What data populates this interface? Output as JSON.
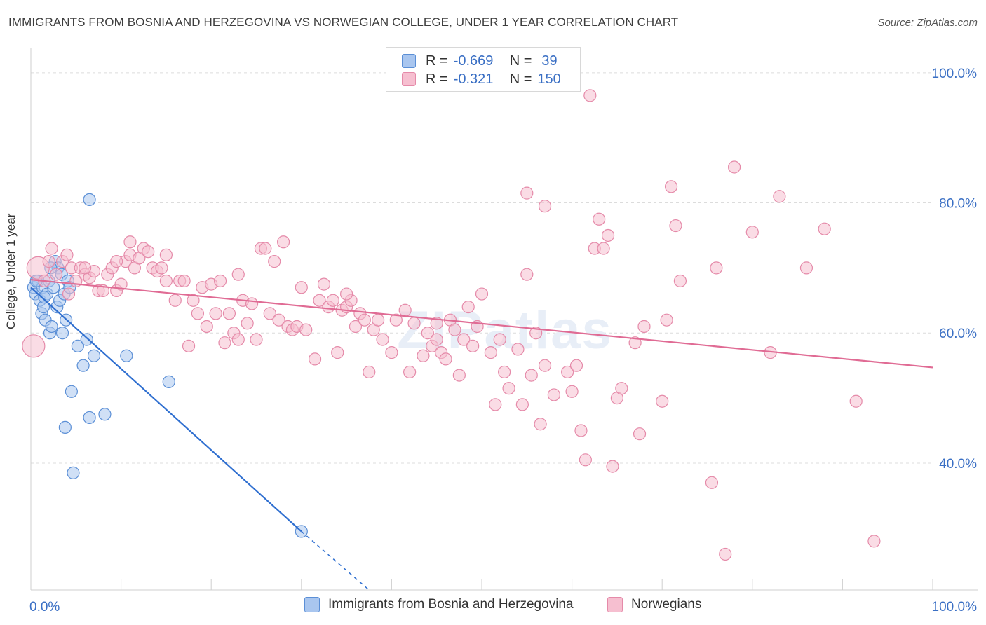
{
  "header": {
    "title": "IMMIGRANTS FROM BOSNIA AND HERZEGOVINA VS NORWEGIAN COLLEGE, UNDER 1 YEAR CORRELATION CHART",
    "source": "Source: ZipAtlas.com"
  },
  "watermark": "ZIPatlas",
  "legend": {
    "r_label": "R =",
    "n_label": "N =",
    "rows": [
      {
        "r": "-0.669",
        "n": "39",
        "color": "#a9c6ef",
        "stroke": "#5b8fd6"
      },
      {
        "r": "-0.321",
        "n": "150",
        "color": "#f6bfd0",
        "stroke": "#e58aa9"
      }
    ]
  },
  "chart_data": {
    "type": "scatter",
    "xlabel": "",
    "ylabel": "College, Under 1 year",
    "x_tick_labels": [
      "0.0%",
      "100.0%"
    ],
    "y_tick_labels": [
      "100.0%",
      "80.0%",
      "60.0%",
      "40.0%"
    ],
    "xlim": [
      0,
      100
    ],
    "ylim": [
      20.5,
      103
    ],
    "grid": true,
    "series": [
      {
        "name": "Immigrants from Bosnia and Herzegovina",
        "color": "#a9c6ef",
        "stroke": "#5b8fd6",
        "line_color": "#2f6fd0",
        "trend": {
          "x0": 0,
          "y0": 67.0,
          "x1": 30,
          "y1": 29.5,
          "dash_to_x": 37.5,
          "dash_to_y": 20.5
        },
        "points": [
          [
            0.3,
            67
          ],
          [
            0.5,
            66
          ],
          [
            0.8,
            68
          ],
          [
            1.0,
            65
          ],
          [
            1.2,
            63
          ],
          [
            1.3,
            67
          ],
          [
            1.4,
            64
          ],
          [
            1.6,
            62
          ],
          [
            1.8,
            66
          ],
          [
            2.0,
            68
          ],
          [
            2.1,
            60
          ],
          [
            2.3,
            61
          ],
          [
            2.5,
            67
          ],
          [
            2.7,
            71
          ],
          [
            2.9,
            64
          ],
          [
            3.0,
            70
          ],
          [
            3.2,
            65
          ],
          [
            3.4,
            69
          ],
          [
            3.5,
            60
          ],
          [
            3.7,
            66
          ],
          [
            3.8,
            45.5
          ],
          [
            3.9,
            62
          ],
          [
            4.1,
            68
          ],
          [
            4.3,
            67
          ],
          [
            4.5,
            51
          ],
          [
            4.7,
            38.5
          ],
          [
            5.2,
            58
          ],
          [
            5.8,
            55
          ],
          [
            6.2,
            59
          ],
          [
            6.5,
            47
          ],
          [
            7.0,
            56.5
          ],
          [
            8.2,
            47.5
          ],
          [
            10.6,
            56.5
          ],
          [
            15.3,
            52.5
          ],
          [
            30.0,
            29.5
          ],
          [
            6.5,
            80.5
          ],
          [
            2.2,
            70
          ],
          [
            0.6,
            68
          ],
          [
            1.5,
            65.5
          ]
        ]
      },
      {
        "name": "Norwegians",
        "color": "#f6bfd0",
        "stroke": "#e58aa9",
        "line_color": "#e06b94",
        "trend": {
          "x0": 0,
          "y0": 68.2,
          "x1": 100,
          "y1": 54.7
        },
        "points": [
          [
            0.3,
            58
          ],
          [
            0.8,
            70
          ],
          [
            1.5,
            68
          ],
          [
            2.0,
            71
          ],
          [
            2.3,
            73
          ],
          [
            2.8,
            69
          ],
          [
            3.5,
            71
          ],
          [
            4.0,
            72
          ],
          [
            4.5,
            70
          ],
          [
            5.0,
            68
          ],
          [
            5.5,
            70
          ],
          [
            6.0,
            69
          ],
          [
            6.5,
            68.5
          ],
          [
            7.0,
            69.5
          ],
          [
            7.5,
            66.5
          ],
          [
            8.0,
            66.5
          ],
          [
            8.5,
            69
          ],
          [
            9.0,
            70
          ],
          [
            9.5,
            66.5
          ],
          [
            10.0,
            67.5
          ],
          [
            10.5,
            71
          ],
          [
            11.0,
            72
          ],
          [
            11.5,
            70
          ],
          [
            12.0,
            71.5
          ],
          [
            12.5,
            73
          ],
          [
            13.0,
            72.5
          ],
          [
            13.5,
            70
          ],
          [
            14.0,
            69.5
          ],
          [
            14.5,
            70
          ],
          [
            15.0,
            68
          ],
          [
            16.0,
            65
          ],
          [
            16.5,
            68
          ],
          [
            17.0,
            68
          ],
          [
            17.5,
            58
          ],
          [
            18.0,
            65
          ],
          [
            18.5,
            63
          ],
          [
            19.0,
            67
          ],
          [
            19.5,
            61
          ],
          [
            20.0,
            67.5
          ],
          [
            20.5,
            63
          ],
          [
            21.0,
            68
          ],
          [
            21.5,
            58.5
          ],
          [
            22.0,
            63
          ],
          [
            22.5,
            60
          ],
          [
            23.0,
            59
          ],
          [
            23.5,
            65
          ],
          [
            24.0,
            61.5
          ],
          [
            24.5,
            64.5
          ],
          [
            25.0,
            59
          ],
          [
            25.5,
            73
          ],
          [
            26.0,
            73
          ],
          [
            26.5,
            63
          ],
          [
            27.0,
            71
          ],
          [
            27.5,
            62
          ],
          [
            28.0,
            74
          ],
          [
            28.5,
            61
          ],
          [
            29.0,
            60.5
          ],
          [
            29.5,
            61
          ],
          [
            30.0,
            67
          ],
          [
            30.5,
            60.5
          ],
          [
            31.5,
            56
          ],
          [
            32.0,
            65
          ],
          [
            32.5,
            67.5
          ],
          [
            33.0,
            64
          ],
          [
            33.5,
            65
          ],
          [
            34.0,
            57
          ],
          [
            34.5,
            63.5
          ],
          [
            35.0,
            64
          ],
          [
            35.5,
            65
          ],
          [
            36.0,
            61
          ],
          [
            36.5,
            63
          ],
          [
            37.0,
            62
          ],
          [
            37.5,
            54
          ],
          [
            38.0,
            60.5
          ],
          [
            38.5,
            62
          ],
          [
            39.0,
            59
          ],
          [
            40.0,
            57
          ],
          [
            40.5,
            62
          ],
          [
            41.5,
            63.5
          ],
          [
            42.0,
            54
          ],
          [
            42.5,
            61.5
          ],
          [
            43.5,
            56.5
          ],
          [
            44.0,
            60
          ],
          [
            44.5,
            58
          ],
          [
            45.0,
            61.5
          ],
          [
            45.5,
            57
          ],
          [
            46.0,
            56
          ],
          [
            46.5,
            62
          ],
          [
            47.0,
            60.5
          ],
          [
            47.5,
            53.5
          ],
          [
            48.0,
            59
          ],
          [
            48.5,
            64
          ],
          [
            49.0,
            58
          ],
          [
            49.5,
            61
          ],
          [
            50.0,
            66
          ],
          [
            51.0,
            57
          ],
          [
            51.5,
            49
          ],
          [
            52.0,
            59
          ],
          [
            52.5,
            54
          ],
          [
            53.0,
            51.5
          ],
          [
            54.0,
            57.5
          ],
          [
            54.5,
            49
          ],
          [
            55.0,
            69
          ],
          [
            55.5,
            53.5
          ],
          [
            56.0,
            60
          ],
          [
            56.5,
            46
          ],
          [
            57.0,
            55
          ],
          [
            58.0,
            50.5
          ],
          [
            59.5,
            54
          ],
          [
            60.0,
            51
          ],
          [
            60.5,
            55
          ],
          [
            61.0,
            45
          ],
          [
            61.5,
            40.5
          ],
          [
            62.5,
            73
          ],
          [
            63.0,
            77.5
          ],
          [
            63.5,
            73
          ],
          [
            64.0,
            75
          ],
          [
            64.5,
            39.5
          ],
          [
            65.0,
            50
          ],
          [
            65.5,
            51.5
          ],
          [
            67.0,
            58.5
          ],
          [
            67.5,
            44.5
          ],
          [
            68.0,
            61
          ],
          [
            70.0,
            49.5
          ],
          [
            70.5,
            62
          ],
          [
            71.0,
            82.5
          ],
          [
            71.5,
            76.5
          ],
          [
            72.0,
            68
          ],
          [
            75.5,
            37
          ],
          [
            76.0,
            70
          ],
          [
            78.0,
            85.5
          ],
          [
            80.0,
            75.5
          ],
          [
            82.0,
            57
          ],
          [
            83.0,
            81
          ],
          [
            86.0,
            70
          ],
          [
            88.0,
            76
          ],
          [
            91.5,
            49.5
          ],
          [
            93.5,
            28
          ],
          [
            77.0,
            26
          ],
          [
            62.0,
            96.5
          ],
          [
            55.0,
            81.5
          ],
          [
            57.0,
            79.5
          ],
          [
            23.0,
            69
          ],
          [
            15.0,
            72
          ],
          [
            9.5,
            71
          ],
          [
            4.2,
            66
          ],
          [
            6.0,
            70
          ],
          [
            11.0,
            74
          ],
          [
            35.0,
            66
          ],
          [
            45.0,
            59
          ]
        ]
      }
    ]
  }
}
